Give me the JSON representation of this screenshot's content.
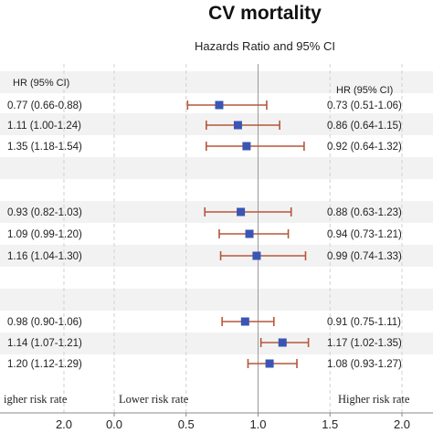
{
  "figure": {
    "title": "CV mortality",
    "subtitle": "Hazards Ratio and 95% CI",
    "left_header": "HR (95% CI)",
    "right_header": "HR (95% CI)",
    "left_axis_label": "igher risk rate",
    "left_axis_tick": "2.0",
    "lower_label": "Lower risk rate",
    "higher_label": "Higher risk rate"
  },
  "chart_data": {
    "type": "forest",
    "title": "CV mortality",
    "subtitle": "Hazards Ratio and 95% CI",
    "xlim": [
      0,
      2.0
    ],
    "xticks": [
      "0.0",
      "0.5",
      "1.0",
      "1.5",
      "2.0"
    ],
    "reference_line": 1.0,
    "marker_color": "#3a55b4",
    "ci_color": "#b5573a",
    "rows": [
      {
        "left_label": "0.77 (0.66-0.88)",
        "right_label": "0.73 (0.51-1.06)",
        "hr": 0.73,
        "lo": 0.51,
        "hi": 1.06,
        "group": 1
      },
      {
        "left_label": "1.11 (1.00-1.24)",
        "right_label": "0.86 (0.64-1.15)",
        "hr": 0.86,
        "lo": 0.64,
        "hi": 1.15,
        "group": 1
      },
      {
        "left_label": "1.35 (1.18-1.54)",
        "right_label": "0.92 (0.64-1.32)",
        "hr": 0.92,
        "lo": 0.64,
        "hi": 1.32,
        "group": 1
      },
      {
        "left_label": "0.93 (0.82-1.03)",
        "right_label": "0.88 (0.63-1.23)",
        "hr": 0.88,
        "lo": 0.63,
        "hi": 1.23,
        "group": 2
      },
      {
        "left_label": "1.09 (0.99-1.20)",
        "right_label": "0.94 (0.73-1.21)",
        "hr": 0.94,
        "lo": 0.73,
        "hi": 1.21,
        "group": 2
      },
      {
        "left_label": "1.16 (1.04-1.30)",
        "right_label": "0.99 (0.74-1.33)",
        "hr": 0.99,
        "lo": 0.74,
        "hi": 1.33,
        "group": 2
      },
      {
        "left_label": "0.98 (0.90-1.06)",
        "right_label": "0.91 (0.75-1.11)",
        "hr": 0.91,
        "lo": 0.75,
        "hi": 1.11,
        "group": 3
      },
      {
        "left_label": "1.14 (1.07-1.21)",
        "right_label": "1.17 (1.02-1.35)",
        "hr": 1.17,
        "lo": 1.02,
        "hi": 1.35,
        "group": 3
      },
      {
        "left_label": "1.20 (1.12-1.29)",
        "right_label": "1.08 (0.93-1.27)",
        "hr": 1.08,
        "lo": 0.93,
        "hi": 1.27,
        "group": 3
      }
    ]
  }
}
